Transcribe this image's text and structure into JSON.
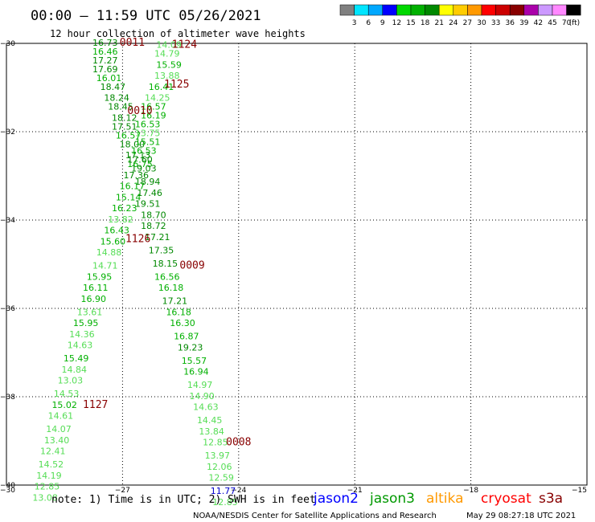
{
  "header": {
    "title": "00:00 – 11:59 UTC 05/26/2021",
    "subtitle": "12 hour collection of altimeter wave heights"
  },
  "legend": {
    "colors": [
      "#808080",
      "#00e5ff",
      "#00a8ff",
      "#0000ff",
      "#00d800",
      "#00b000",
      "#008800",
      "#ffff00",
      "#ffcc00",
      "#ff9900",
      "#ff0000",
      "#cc0000",
      "#880000",
      "#aa00aa",
      "#cc99ff",
      "#ff88ff",
      "#000000"
    ],
    "labels": [
      "3",
      "6",
      "9",
      "12",
      "15",
      "18",
      "21",
      "24",
      "27",
      "30",
      "33",
      "36",
      "39",
      "42",
      "45",
      "70",
      "(ft)"
    ]
  },
  "footer": {
    "note": "note:  1) Time is in UTC;  2) SWH is in feet",
    "credit": "NOAA/NESDIS Center for Satellite Applications and Research",
    "timestamp": "May 29 08:27:18 UTC 2021",
    "satellites": [
      {
        "name": "jason2",
        "color": "#0000ff"
      },
      {
        "name": "jason3",
        "color": "#009900"
      },
      {
        "name": "altika",
        "color": "#ff9900"
      },
      {
        "name": "cryosat",
        "color": "#ff0000"
      },
      {
        "name": "s3a",
        "color": "#880000"
      }
    ]
  },
  "chart_data": {
    "type": "scatter",
    "title": "12 hour collection of altimeter wave heights",
    "xlim": [
      -30,
      -15
    ],
    "ylim": [
      -40,
      -30
    ],
    "xticks": [
      -30,
      -27,
      -24,
      -21,
      -18,
      -15
    ],
    "yticks": [
      -30,
      -32,
      -34,
      -36,
      -38,
      -40
    ],
    "xtick_labels": [
      "−30",
      "−27",
      "−24",
      "−21",
      "−18",
      "−15"
    ],
    "ytick_labels": [
      "−30",
      "−32",
      "−34",
      "−36",
      "−38",
      "−40"
    ],
    "grid": true,
    "points": [
      {
        "x": -27.45,
        "y": -30.05,
        "v": "16.73",
        "c": "#008800"
      },
      {
        "x": -27.45,
        "y": -30.25,
        "v": "16.46",
        "c": "#00b000"
      },
      {
        "x": -27.45,
        "y": -30.45,
        "v": "17.27",
        "c": "#008800"
      },
      {
        "x": -27.45,
        "y": -30.65,
        "v": "17.69",
        "c": "#008800"
      },
      {
        "x": -27.35,
        "y": -30.85,
        "v": "16.01",
        "c": "#00b000"
      },
      {
        "x": -27.25,
        "y": -31.05,
        "v": "18.47",
        "c": "#008800"
      },
      {
        "x": -27.15,
        "y": -31.3,
        "v": "18.24",
        "c": "#008800"
      },
      {
        "x": -27.05,
        "y": -31.5,
        "v": "18.45",
        "c": "#008800"
      },
      {
        "x": -26.95,
        "y": -31.75,
        "v": "18.12",
        "c": "#008800"
      },
      {
        "x": -26.95,
        "y": -31.95,
        "v": "17.51",
        "c": "#008800"
      },
      {
        "x": -26.85,
        "y": -32.15,
        "v": "16.57",
        "c": "#00b000"
      },
      {
        "x": -26.75,
        "y": -32.35,
        "v": "18.00",
        "c": "#008800"
      },
      {
        "x": -26.6,
        "y": -32.6,
        "v": "17.13",
        "c": "#008800"
      },
      {
        "x": -26.55,
        "y": -32.8,
        "v": "16.75",
        "c": "#00b000"
      },
      {
        "x": -26.65,
        "y": -33.05,
        "v": "17.36",
        "c": "#008800"
      },
      {
        "x": -26.75,
        "y": -33.3,
        "v": "16.17",
        "c": "#00b000"
      },
      {
        "x": -26.85,
        "y": -33.55,
        "v": "15.14",
        "c": "#00b000"
      },
      {
        "x": -26.95,
        "y": -33.8,
        "v": "16.23",
        "c": "#00b000"
      },
      {
        "x": -27.05,
        "y": -34.05,
        "v": "13.82",
        "c": "#55dd55"
      },
      {
        "x": -27.15,
        "y": -34.3,
        "v": "16.43",
        "c": "#00b000"
      },
      {
        "x": -27.25,
        "y": -34.55,
        "v": "15.60",
        "c": "#00b000"
      },
      {
        "x": -27.35,
        "y": -34.8,
        "v": "14.88",
        "c": "#55dd55"
      },
      {
        "x": -27.45,
        "y": -35.1,
        "v": "14.71",
        "c": "#55dd55"
      },
      {
        "x": -27.6,
        "y": -35.35,
        "v": "15.95",
        "c": "#00b000"
      },
      {
        "x": -27.7,
        "y": -35.6,
        "v": "16.11",
        "c": "#00b000"
      },
      {
        "x": -27.75,
        "y": -35.85,
        "v": "16.90",
        "c": "#00b000"
      },
      {
        "x": -27.85,
        "y": -36.15,
        "v": "13.61",
        "c": "#55dd55"
      },
      {
        "x": -27.95,
        "y": -36.4,
        "v": "15.95",
        "c": "#00b000"
      },
      {
        "x": -28.05,
        "y": -36.65,
        "v": "14.36",
        "c": "#55dd55"
      },
      {
        "x": -28.1,
        "y": -36.9,
        "v": "14.63",
        "c": "#55dd55"
      },
      {
        "x": -28.2,
        "y": -37.2,
        "v": "15.49",
        "c": "#00b000"
      },
      {
        "x": -28.25,
        "y": -37.45,
        "v": "14.84",
        "c": "#55dd55"
      },
      {
        "x": -28.35,
        "y": -37.7,
        "v": "13.03",
        "c": "#55dd55"
      },
      {
        "x": -28.45,
        "y": -38.0,
        "v": "14.53",
        "c": "#55dd55"
      },
      {
        "x": -28.5,
        "y": -38.25,
        "v": "15.02",
        "c": "#00b000"
      },
      {
        "x": -28.6,
        "y": -38.5,
        "v": "14.61",
        "c": "#55dd55"
      },
      {
        "x": -28.65,
        "y": -38.8,
        "v": "14.07",
        "c": "#55dd55"
      },
      {
        "x": -28.7,
        "y": -39.05,
        "v": "13.40",
        "c": "#55dd55"
      },
      {
        "x": -28.8,
        "y": -39.3,
        "v": "12.41",
        "c": "#55dd55"
      },
      {
        "x": -28.85,
        "y": -39.6,
        "v": "14.52",
        "c": "#55dd55"
      },
      {
        "x": -28.9,
        "y": -39.85,
        "v": "14.19",
        "c": "#55dd55"
      },
      {
        "x": -28.95,
        "y": -40.1,
        "v": "12.85",
        "c": "#55dd55"
      },
      {
        "x": -29.0,
        "y": -40.35,
        "v": "13.08",
        "c": "#55dd55"
      },
      {
        "x": -25.8,
        "y": -30.1,
        "v": "14.09",
        "c": "#55dd55"
      },
      {
        "x": -25.85,
        "y": -30.3,
        "v": "14.79",
        "c": "#55dd55"
      },
      {
        "x": -25.8,
        "y": -30.55,
        "v": "15.59",
        "c": "#00b000"
      },
      {
        "x": -25.85,
        "y": -30.8,
        "v": "13.88",
        "c": "#55dd55"
      },
      {
        "x": -26.0,
        "y": -31.05,
        "v": "16.41",
        "c": "#00b000"
      },
      {
        "x": -26.1,
        "y": -31.3,
        "v": "14.25",
        "c": "#55dd55"
      },
      {
        "x": -26.2,
        "y": -31.5,
        "v": "16.57",
        "c": "#00b000"
      },
      {
        "x": -26.2,
        "y": -31.7,
        "v": "16.19",
        "c": "#00b000"
      },
      {
        "x": -26.35,
        "y": -31.9,
        "v": "16.53",
        "c": "#00b000"
      },
      {
        "x": -26.35,
        "y": -32.1,
        "v": "13.75",
        "c": "#55dd55"
      },
      {
        "x": -26.35,
        "y": -32.3,
        "v": "15.51",
        "c": "#00b000"
      },
      {
        "x": -26.45,
        "y": -32.5,
        "v": "16.53",
        "c": "#00b000"
      },
      {
        "x": -26.55,
        "y": -32.7,
        "v": "17.60",
        "c": "#008800"
      },
      {
        "x": -26.45,
        "y": -32.9,
        "v": "19.03",
        "c": "#008800"
      },
      {
        "x": -26.35,
        "y": -33.2,
        "v": "18.94",
        "c": "#008800"
      },
      {
        "x": -26.3,
        "y": -33.45,
        "v": "17.46",
        "c": "#008800"
      },
      {
        "x": -26.35,
        "y": -33.7,
        "v": "19.51",
        "c": "#008800"
      },
      {
        "x": -26.2,
        "y": -33.95,
        "v": "18.70",
        "c": "#008800"
      },
      {
        "x": -26.2,
        "y": -34.2,
        "v": "18.72",
        "c": "#008800"
      },
      {
        "x": -26.1,
        "y": -34.45,
        "v": "17.21",
        "c": "#008800"
      },
      {
        "x": -26.0,
        "y": -34.75,
        "v": "17.35",
        "c": "#008800"
      },
      {
        "x": -25.9,
        "y": -35.05,
        "v": "18.15",
        "c": "#008800"
      },
      {
        "x": -25.85,
        "y": -35.35,
        "v": "16.56",
        "c": "#00b000"
      },
      {
        "x": -25.75,
        "y": -35.6,
        "v": "16.18",
        "c": "#00b000"
      },
      {
        "x": -25.65,
        "y": -35.9,
        "v": "17.21",
        "c": "#008800"
      },
      {
        "x": -25.55,
        "y": -36.15,
        "v": "16.18",
        "c": "#00b000"
      },
      {
        "x": -25.45,
        "y": -36.4,
        "v": "16.30",
        "c": "#00b000"
      },
      {
        "x": -25.35,
        "y": -36.7,
        "v": "16.87",
        "c": "#00b000"
      },
      {
        "x": -25.25,
        "y": -36.95,
        "v": "19.23",
        "c": "#008800"
      },
      {
        "x": -25.15,
        "y": -37.25,
        "v": "15.57",
        "c": "#00b000"
      },
      {
        "x": -25.1,
        "y": -37.5,
        "v": "16.94",
        "c": "#00b000"
      },
      {
        "x": -25.0,
        "y": -37.8,
        "v": "14.97",
        "c": "#55dd55"
      },
      {
        "x": -24.95,
        "y": -38.05,
        "v": "14.90",
        "c": "#55dd55"
      },
      {
        "x": -24.85,
        "y": -38.3,
        "v": "14.63",
        "c": "#55dd55"
      },
      {
        "x": -24.75,
        "y": -38.6,
        "v": "14.45",
        "c": "#55dd55"
      },
      {
        "x": -24.7,
        "y": -38.85,
        "v": "13.84",
        "c": "#55dd55"
      },
      {
        "x": -24.6,
        "y": -39.1,
        "v": "12.85",
        "c": "#55dd55"
      },
      {
        "x": -24.55,
        "y": -39.4,
        "v": "13.97",
        "c": "#55dd55"
      },
      {
        "x": -24.5,
        "y": -39.65,
        "v": "12.06",
        "c": "#55dd55"
      },
      {
        "x": -24.45,
        "y": -39.9,
        "v": "12.59",
        "c": "#55dd55"
      },
      {
        "x": -24.4,
        "y": -40.2,
        "v": "11.77",
        "c": "#0000cc"
      },
      {
        "x": -24.35,
        "y": -40.45,
        "v": "12.85",
        "c": "#55dd55"
      }
    ],
    "time_labels": [
      {
        "x": -26.75,
        "y": -30.05,
        "text": "0011"
      },
      {
        "x": -25.4,
        "y": -30.1,
        "text": "1124"
      },
      {
        "x": -25.6,
        "y": -31.0,
        "text": "1125"
      },
      {
        "x": -26.55,
        "y": -31.6,
        "text": "0010"
      },
      {
        "x": -26.6,
        "y": -34.5,
        "text": "1126"
      },
      {
        "x": -25.2,
        "y": -35.1,
        "text": "0009"
      },
      {
        "x": -27.7,
        "y": -38.25,
        "text": "1127"
      },
      {
        "x": -24.0,
        "y": -39.1,
        "text": "0008"
      }
    ]
  }
}
